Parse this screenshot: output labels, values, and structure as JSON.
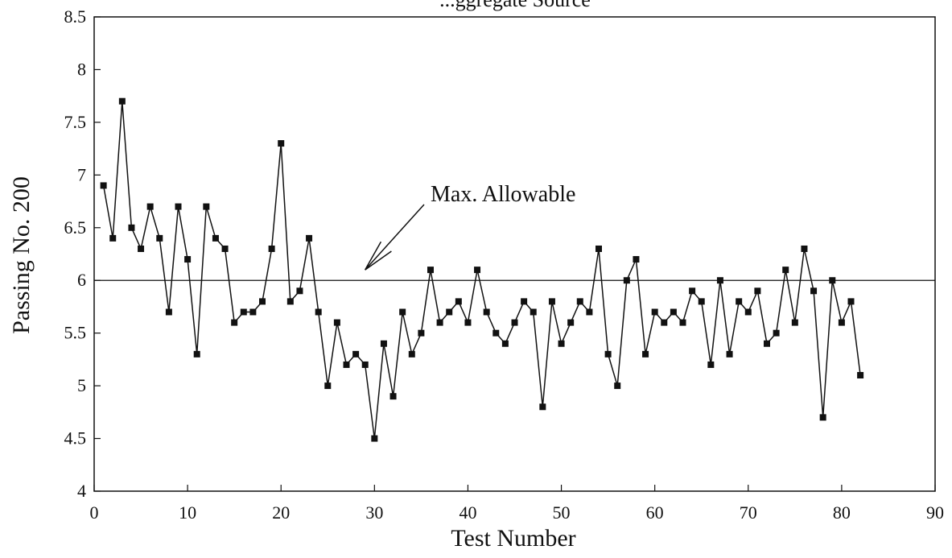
{
  "chart_data": {
    "type": "line",
    "title": "",
    "partial_title": "...ggregate Source",
    "xlabel": "Test Number",
    "ylabel": "Passing No. 200",
    "xlim": [
      0,
      90
    ],
    "ylim": [
      4,
      8.5
    ],
    "x_ticks": [
      "0",
      "10",
      "20",
      "30",
      "40",
      "50",
      "60",
      "70",
      "80",
      "90"
    ],
    "y_ticks": [
      "4",
      "4.5",
      "5",
      "5.5",
      "6",
      "6.5",
      "7",
      "7.5",
      "8",
      "8.5"
    ],
    "grid": false,
    "legend": "none",
    "series": [
      {
        "x": [
          1,
          2,
          3,
          4,
          5,
          6,
          7,
          8,
          9,
          10,
          11,
          12,
          13,
          14,
          15,
          16,
          17,
          18,
          19,
          20,
          21,
          22,
          23,
          24,
          25,
          26,
          27,
          28,
          29,
          30,
          31,
          32,
          33,
          34,
          35,
          36,
          37,
          38,
          39,
          40,
          41,
          42,
          43,
          44,
          45,
          46,
          47,
          48,
          49,
          50,
          51,
          52,
          53,
          54,
          55,
          56,
          57,
          58,
          59,
          60,
          61,
          62,
          63,
          64,
          65,
          66,
          67,
          68,
          69,
          70,
          71,
          72,
          73,
          74,
          75,
          76,
          77,
          78,
          79,
          80,
          81,
          82
        ],
        "values": [
          6.9,
          6.4,
          7.7,
          6.5,
          6.3,
          6.7,
          6.4,
          5.7,
          6.7,
          6.2,
          5.3,
          6.7,
          6.4,
          6.3,
          5.6,
          5.7,
          5.7,
          5.8,
          6.3,
          7.3,
          5.8,
          5.9,
          6.4,
          5.7,
          5.0,
          5.6,
          5.2,
          5.3,
          5.2,
          4.5,
          5.4,
          4.9,
          5.7,
          5.3,
          5.5,
          6.1,
          5.6,
          5.7,
          5.8,
          5.6,
          6.1,
          5.7,
          5.5,
          5.4,
          5.6,
          5.8,
          5.7,
          4.8,
          5.8,
          5.4,
          5.6,
          5.8,
          5.7,
          6.3,
          5.3,
          5.0,
          6.0,
          6.2,
          5.3,
          5.7,
          5.6,
          5.7,
          5.6,
          5.9,
          5.8,
          5.2,
          6.0,
          5.3,
          5.8,
          5.7,
          5.9,
          5.4,
          5.5,
          6.1,
          5.6,
          6.3,
          5.9,
          4.7,
          6.0,
          5.6,
          5.8,
          5.1
        ]
      }
    ],
    "reference_line": {
      "y": 6.0,
      "label": "Max. Allowable"
    },
    "annotation": {
      "text": "Max. Allowable",
      "target_x": 29,
      "target_y": 6.1
    },
    "colors": {
      "line": "#111111",
      "marker": "#111111",
      "axis": "#111111"
    }
  }
}
